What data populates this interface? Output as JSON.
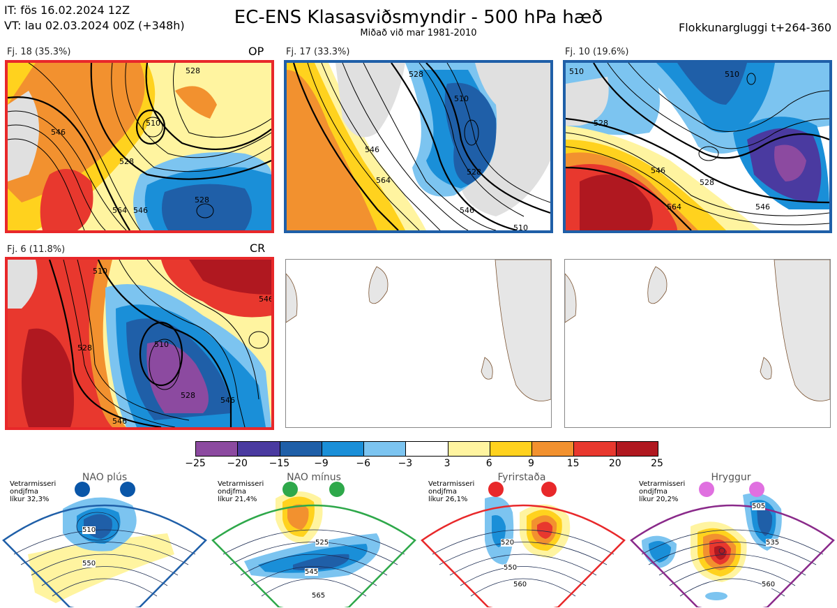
{
  "header": {
    "init_time": "IT: fös 16.02.2024 12Z",
    "valid_time": "VT: lau 02.03.2024 00Z  (+348h)",
    "title": "EC-ENS Klasasviðsmyndir - 500 hPa hæð",
    "subtitle": "Miðað við mar 1981-2010",
    "window": "Flokkunargluggi t+264-360"
  },
  "clusters": [
    {
      "label": "Fj. 18 (35.3%)",
      "tag": "OP",
      "border": "#e8282a"
    },
    {
      "label": "Fj. 17 (33.3%)",
      "tag": "",
      "border": "#1f5fa8"
    },
    {
      "label": "Fj. 10 (19.6%)",
      "tag": "",
      "border": "#1f5fa8"
    },
    {
      "label": "Fj. 6 (11.8%)",
      "tag": "CR",
      "border": "#e8282a"
    }
  ],
  "contour_labels": {
    "c18": [
      "528",
      "546",
      "528",
      "564",
      "546",
      "528",
      "510"
    ],
    "c17": [
      "528",
      "510",
      "528",
      "546",
      "564",
      "546",
      "510"
    ],
    "c10": [
      "510",
      "528",
      "546",
      "564",
      "528",
      "546",
      "510"
    ],
    "c6": [
      "510",
      "528",
      "510",
      "546",
      "528",
      "546",
      "546"
    ]
  },
  "colorbar": {
    "ticks": [
      "−25",
      "−20",
      "−15",
      "−9",
      "−6",
      "−3",
      "3",
      "6",
      "9",
      "15",
      "20",
      "25"
    ],
    "colors": [
      "#8c4aa0",
      "#4a3aa0",
      "#1f5fa8",
      "#1a8fd8",
      "#7cc4f0",
      "#ffffff",
      "#fff4a0",
      "#ffd21e",
      "#f2912f",
      "#e8382e",
      "#b01820"
    ]
  },
  "regimes": [
    {
      "name": "NAO plús",
      "prob_lines": [
        "Vetrarmisseri",
        "ondjfma",
        "líkur 32,3%"
      ],
      "color": "#1f5fa8",
      "dot": "#0a56a8",
      "labels": [
        "510",
        "550"
      ]
    },
    {
      "name": "NAO mínus",
      "prob_lines": [
        "Vetrarmisseri",
        "ondjfma",
        "líkur 21,4%"
      ],
      "color": "#2ea84a",
      "dot": "#2ea84a",
      "labels": [
        "525",
        "545",
        "565"
      ]
    },
    {
      "name": "Fyrirstaða",
      "prob_lines": [
        "Vetrarmisseri",
        "ondjfma",
        "líkur 26,1%"
      ],
      "color": "#e8282a",
      "dot": "#e8282a",
      "labels": [
        "520",
        "550",
        "560"
      ]
    },
    {
      "name": "Hryggur",
      "prob_lines": [
        "Vetrarmisseri",
        "ondjfma",
        "líkur 20,2%"
      ],
      "color": "#8a2a8a",
      "dot": "#e070e0",
      "labels": [
        "505",
        "535",
        "560"
      ]
    }
  ]
}
